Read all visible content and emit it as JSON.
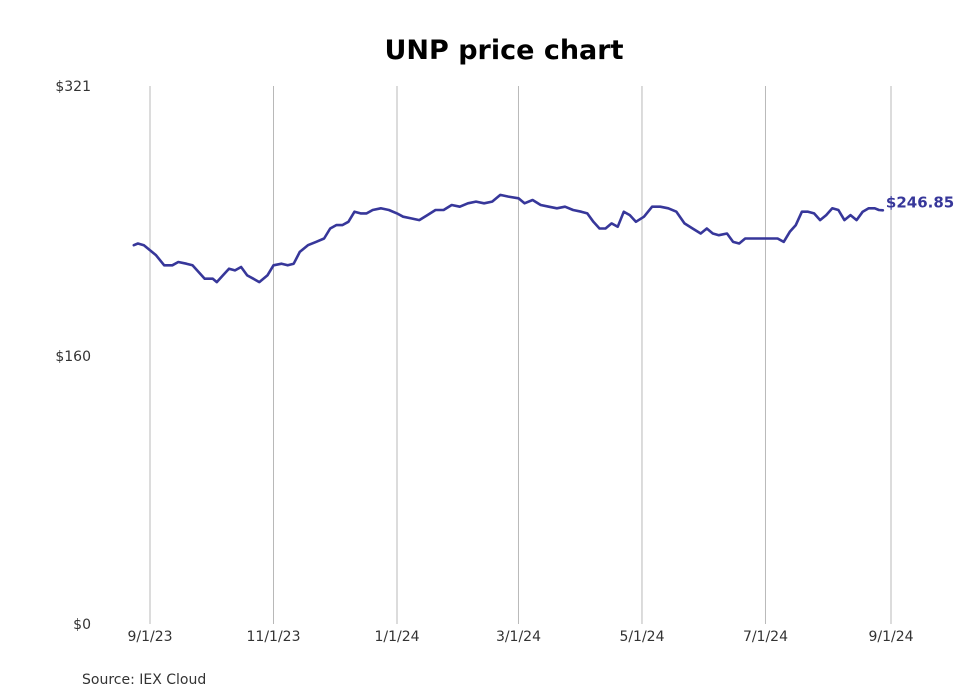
{
  "chart_data": {
    "type": "line",
    "title": "UNP price chart",
    "source": "Source: IEX Cloud",
    "ylim": [
      0,
      321
    ],
    "yticks": [
      {
        "value": 0,
        "label": "$0"
      },
      {
        "value": 160,
        "label": "$160"
      },
      {
        "value": 321,
        "label": "$321"
      }
    ],
    "xlim": [
      "2023-08-25",
      "2024-09-20"
    ],
    "xticks": [
      {
        "date": "2023-09-01",
        "label": "9/1/23"
      },
      {
        "date": "2023-11-01",
        "label": "11/1/23"
      },
      {
        "date": "2024-01-01",
        "label": "1/1/24"
      },
      {
        "date": "2024-03-01",
        "label": "3/1/24"
      },
      {
        "date": "2024-05-01",
        "label": "5/1/24"
      },
      {
        "date": "2024-07-01",
        "label": "7/1/24"
      },
      {
        "date": "2024-09-01",
        "label": "9/1/24"
      }
    ],
    "grid": {
      "vertical": true,
      "horizontal": false
    },
    "line_color": "#37379a",
    "last_value_label": "$246.85",
    "series": [
      {
        "points": [
          [
            "2023-08-24",
            226
          ],
          [
            "2023-08-26",
            227
          ],
          [
            "2023-08-29",
            226
          ],
          [
            "2023-09-01",
            223
          ],
          [
            "2023-09-04",
            220
          ],
          [
            "2023-09-08",
            214
          ],
          [
            "2023-09-12",
            214
          ],
          [
            "2023-09-15",
            216
          ],
          [
            "2023-09-19",
            215
          ],
          [
            "2023-09-22",
            214
          ],
          [
            "2023-09-25",
            210
          ],
          [
            "2023-09-28",
            206
          ],
          [
            "2023-10-02",
            206
          ],
          [
            "2023-10-04",
            204
          ],
          [
            "2023-10-07",
            208
          ],
          [
            "2023-10-10",
            212
          ],
          [
            "2023-10-13",
            211
          ],
          [
            "2023-10-16",
            213
          ],
          [
            "2023-10-19",
            208
          ],
          [
            "2023-10-22",
            206
          ],
          [
            "2023-10-25",
            204
          ],
          [
            "2023-10-29",
            208
          ],
          [
            "2023-11-01",
            214
          ],
          [
            "2023-11-05",
            215
          ],
          [
            "2023-11-08",
            214
          ],
          [
            "2023-11-11",
            215
          ],
          [
            "2023-11-14",
            222
          ],
          [
            "2023-11-18",
            226
          ],
          [
            "2023-11-22",
            228
          ],
          [
            "2023-11-26",
            230
          ],
          [
            "2023-11-29",
            236
          ],
          [
            "2023-12-02",
            238
          ],
          [
            "2023-12-05",
            238
          ],
          [
            "2023-12-08",
            240
          ],
          [
            "2023-12-11",
            246
          ],
          [
            "2023-12-14",
            245
          ],
          [
            "2023-12-17",
            245
          ],
          [
            "2023-12-20",
            247
          ],
          [
            "2023-12-24",
            248
          ],
          [
            "2023-12-28",
            247
          ],
          [
            "2024-01-01",
            245
          ],
          [
            "2024-01-04",
            243
          ],
          [
            "2024-01-08",
            242
          ],
          [
            "2024-01-12",
            241
          ],
          [
            "2024-01-16",
            244
          ],
          [
            "2024-01-20",
            247
          ],
          [
            "2024-01-24",
            247
          ],
          [
            "2024-01-28",
            250
          ],
          [
            "2024-02-01",
            249
          ],
          [
            "2024-02-05",
            251
          ],
          [
            "2024-02-09",
            252
          ],
          [
            "2024-02-13",
            251
          ],
          [
            "2024-02-17",
            252
          ],
          [
            "2024-02-21",
            256
          ],
          [
            "2024-02-25",
            255
          ],
          [
            "2024-03-01",
            254
          ],
          [
            "2024-03-04",
            251
          ],
          [
            "2024-03-08",
            253
          ],
          [
            "2024-03-12",
            250
          ],
          [
            "2024-03-16",
            249
          ],
          [
            "2024-03-20",
            248
          ],
          [
            "2024-03-24",
            249
          ],
          [
            "2024-03-28",
            247
          ],
          [
            "2024-04-01",
            246
          ],
          [
            "2024-04-04",
            245
          ],
          [
            "2024-04-07",
            240
          ],
          [
            "2024-04-10",
            236
          ],
          [
            "2024-04-13",
            236
          ],
          [
            "2024-04-16",
            239
          ],
          [
            "2024-04-19",
            237
          ],
          [
            "2024-04-22",
            246
          ],
          [
            "2024-04-25",
            244
          ],
          [
            "2024-04-28",
            240
          ],
          [
            "2024-05-02",
            243
          ],
          [
            "2024-05-06",
            249
          ],
          [
            "2024-05-10",
            249
          ],
          [
            "2024-05-14",
            248
          ],
          [
            "2024-05-18",
            246
          ],
          [
            "2024-05-22",
            239
          ],
          [
            "2024-05-26",
            236
          ],
          [
            "2024-05-30",
            233
          ],
          [
            "2024-06-02",
            236
          ],
          [
            "2024-06-05",
            233
          ],
          [
            "2024-06-08",
            232
          ],
          [
            "2024-06-12",
            233
          ],
          [
            "2024-06-15",
            228
          ],
          [
            "2024-06-18",
            227
          ],
          [
            "2024-06-21",
            230
          ],
          [
            "2024-06-24",
            230
          ],
          [
            "2024-06-27",
            230
          ],
          [
            "2024-07-01",
            230
          ],
          [
            "2024-07-04",
            230
          ],
          [
            "2024-07-07",
            230
          ],
          [
            "2024-07-10",
            228
          ],
          [
            "2024-07-13",
            234
          ],
          [
            "2024-07-16",
            238
          ],
          [
            "2024-07-19",
            246
          ],
          [
            "2024-07-22",
            246
          ],
          [
            "2024-07-25",
            245
          ],
          [
            "2024-07-28",
            241
          ],
          [
            "2024-07-31",
            244
          ],
          [
            "2024-08-03",
            248
          ],
          [
            "2024-08-06",
            247
          ],
          [
            "2024-08-09",
            241
          ],
          [
            "2024-08-12",
            244
          ],
          [
            "2024-08-15",
            241
          ],
          [
            "2024-08-18",
            246
          ],
          [
            "2024-08-21",
            248
          ],
          [
            "2024-08-24",
            248
          ],
          [
            "2024-08-26",
            247
          ],
          [
            "2024-08-28",
            246.85
          ]
        ]
      }
    ]
  }
}
